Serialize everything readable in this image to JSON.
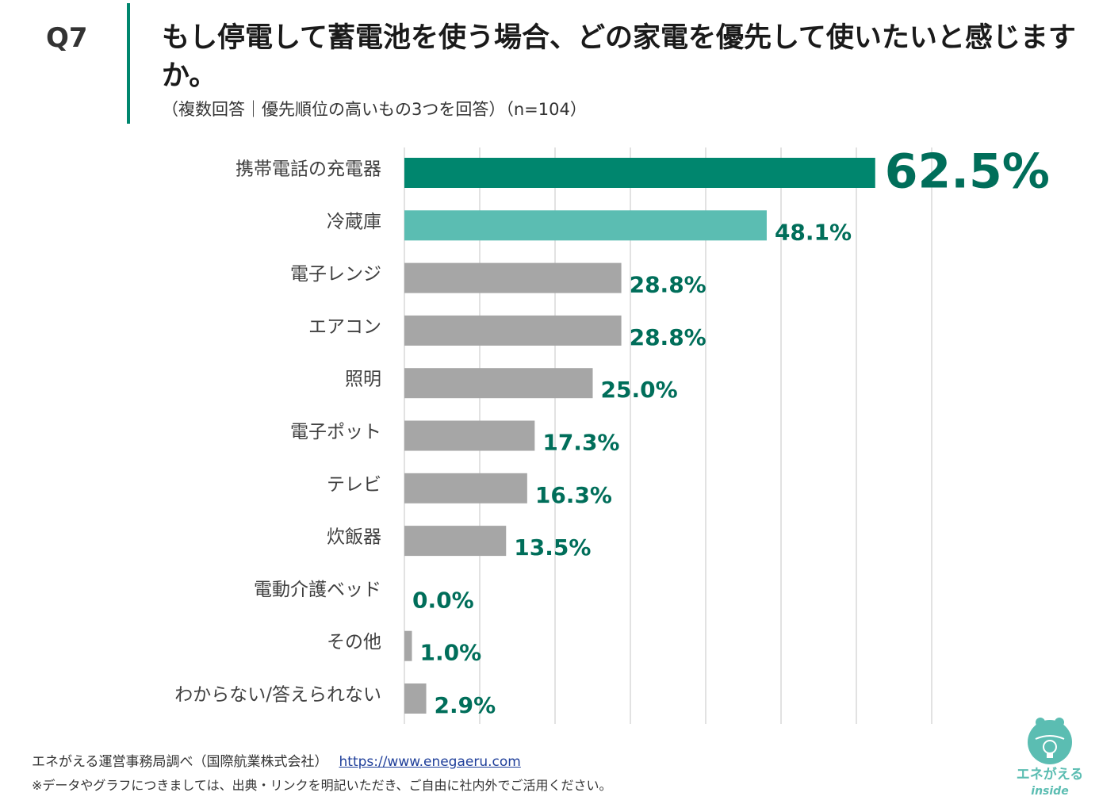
{
  "header": {
    "question_number": "Q7",
    "title": "もし停電して蓄電池を使う場合、どの家電を優先して使いたいと感じますか。",
    "subtitle": "（複数回答｜優先順位の高いもの3つを回答）（n=104）"
  },
  "chart_data": {
    "type": "bar",
    "orientation": "horizontal",
    "categories": [
      "携帯電話の充電器",
      "冷蔵庫",
      "電子レンジ",
      "エアコン",
      "照明",
      "電子ポット",
      "テレビ",
      "炊飯器",
      "電動介護ベッド",
      "その他",
      "わからない/答えられない"
    ],
    "values": [
      62.5,
      48.1,
      28.8,
      28.8,
      25.0,
      17.3,
      16.3,
      13.5,
      0.0,
      1.0,
      2.9
    ],
    "labels": [
      "62.5%",
      "48.1%",
      "28.8%",
      "28.8%",
      "25.0%",
      "17.3%",
      "16.3%",
      "13.5%",
      "0.0%",
      "1.0%",
      "2.9%"
    ],
    "unit": "%",
    "xlim": [
      0,
      70
    ],
    "grid": true,
    "colors": {
      "top1": "#00866e",
      "top2": "#5bbdb2",
      "rest": "#a6a6a6",
      "label": "#006e5a",
      "grid": "#d9d9d9",
      "category": "#404040"
    }
  },
  "footer": {
    "source": "エネがえる運営事務局調べ（国際航業株式会社）",
    "url": "https://www.enegaeru.com",
    "note": "※データやグラフにつきましては、出典・リンクを明記いただき、ご自由に社内外でご活用ください。"
  },
  "logo": {
    "name": "エネがえる",
    "sub": "inside",
    "color": "#5bbdb2"
  }
}
